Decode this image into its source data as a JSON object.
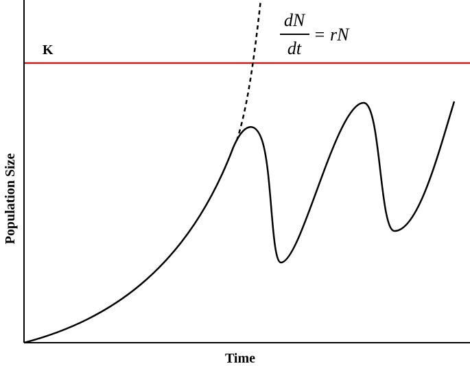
{
  "axes": {
    "y_label": "Population Size",
    "x_label": "Time"
  },
  "carrying_capacity": {
    "label": "K"
  },
  "equation": {
    "numerator": "dN",
    "denominator": "dt",
    "rhs": "= rN"
  }
}
